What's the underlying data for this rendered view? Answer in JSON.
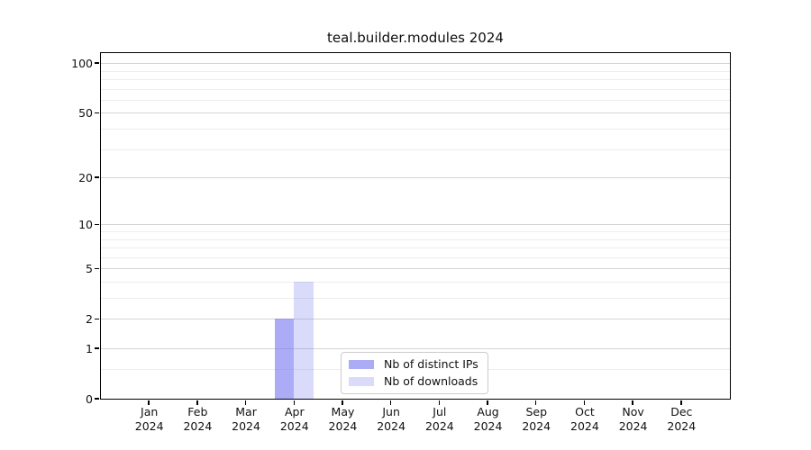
{
  "chart_data": {
    "type": "bar",
    "title": "teal.builder.modules 2024",
    "months": [
      "Jan",
      "Feb",
      "Mar",
      "Apr",
      "May",
      "Jun",
      "Jul",
      "Aug",
      "Sep",
      "Oct",
      "Nov",
      "Dec"
    ],
    "year": "2024",
    "categories": [
      "Jan 2024",
      "Feb 2024",
      "Mar 2024",
      "Apr 2024",
      "May 2024",
      "Jun 2024",
      "Jul 2024",
      "Aug 2024",
      "Sep 2024",
      "Oct 2024",
      "Nov 2024",
      "Dec 2024"
    ],
    "series": [
      {
        "name": "Nb of distinct IPs",
        "color": "rgba(120,120,240,0.62)",
        "values": [
          0,
          0,
          0,
          2,
          0,
          0,
          0,
          0,
          0,
          0,
          0,
          0
        ]
      },
      {
        "name": "Nb of downloads",
        "color": "rgba(120,120,240,0.27)",
        "values": [
          0,
          0,
          0,
          4,
          0,
          0,
          0,
          0,
          0,
          0,
          0,
          0
        ]
      }
    ],
    "y_axis": {
      "scale": "log1p",
      "ticks": [
        0,
        1,
        2,
        5,
        10,
        20,
        50,
        100
      ],
      "minor_gridlines": [
        0.5,
        3,
        4,
        6,
        7,
        8,
        9,
        30,
        40,
        60,
        70,
        80,
        90
      ],
      "lim": [
        0,
        116
      ]
    },
    "xlabel": "",
    "ylabel": "",
    "grid": true,
    "legend": {
      "position": "lower center"
    },
    "colors": {
      "bar_distinct_ips_rendered": "#abaaf7",
      "bar_downloads_rendered": "#dbdbfb",
      "major_grid": "#d4d4d4",
      "minor_grid": "#ededed",
      "spine": "#000000",
      "background": "#ffffff",
      "text": "#111111"
    }
  }
}
